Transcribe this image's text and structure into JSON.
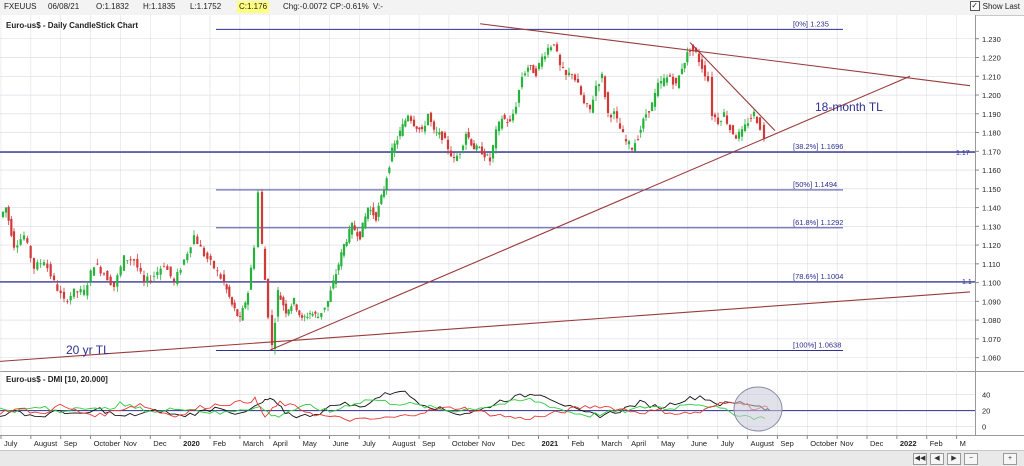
{
  "toolbar": {
    "symbol": "FXEUUS",
    "date": "06/08/21",
    "open": "O:1.1832",
    "high": "H:1.1835",
    "low": "L:1.1752",
    "close": "C:1.176",
    "change": "Chg:-0.0072",
    "change_pct": "CP:-0.61%",
    "dropdown_arrow": "V:-",
    "show_last_label": "Show Last",
    "show_last_checked": "✓"
  },
  "main_panel": {
    "title": "Euro-us$ - Daily CandleStick Chart"
  },
  "indicator_panel": {
    "title": "Euro-us$ - DMI [10, 20.000]"
  },
  "colors": {
    "bull": "#27b33b",
    "bear": "#d23a3a",
    "fib": "#2e3192",
    "trendline": "#9b3b3b",
    "grid": "#d9d9e3",
    "dmi_adx": "#111111",
    "dmi_plus": "#2ecc40",
    "dmi_minus": "#e53935",
    "circle_fill": "#c9c9d9"
  },
  "annotations": {
    "label_18m": "18-month TL",
    "label_20y": "20 yr TL",
    "right_edge_1": "1.17",
    "right_edge_2": "1.1"
  },
  "chart_data": [
    {
      "type": "candlestick",
      "title": "Euro-us$ - Daily CandleStick Chart",
      "ylim": [
        1.055,
        1.24
      ],
      "y_ticks": [
        "1.230",
        "1.220",
        "1.210",
        "1.200",
        "1.190",
        "1.180",
        "1.170",
        "1.160",
        "1.150",
        "1.140",
        "1.130",
        "1.120",
        "1.110",
        "1.100",
        "1.090",
        "1.080",
        "1.070",
        "1.060"
      ],
      "x_labels": [
        "July",
        "August",
        "Sep",
        "October",
        "Nov",
        "Dec",
        "2020",
        "Feb",
        "March",
        "April",
        "May",
        "June",
        "July",
        "August",
        "Sep",
        "October",
        "Nov",
        "Dec",
        "2021",
        "Feb",
        "March",
        "April",
        "May",
        "June",
        "July",
        "August",
        "Sep",
        "October",
        "Nov",
        "Dec",
        "2022",
        "Feb",
        "M"
      ],
      "price_path": [
        [
          0,
          1.135
        ],
        [
          6,
          1.14
        ],
        [
          14,
          1.12
        ],
        [
          24,
          1.125
        ],
        [
          34,
          1.108
        ],
        [
          44,
          1.112
        ],
        [
          54,
          1.1
        ],
        [
          64,
          1.09
        ],
        [
          74,
          1.095
        ],
        [
          84,
          1.095
        ],
        [
          94,
          1.11
        ],
        [
          104,
          1.105
        ],
        [
          114,
          1.098
        ],
        [
          124,
          1.113
        ],
        [
          134,
          1.112
        ],
        [
          144,
          1.1
        ],
        [
          154,
          1.104
        ],
        [
          164,
          1.11
        ],
        [
          174,
          1.1
        ],
        [
          184,
          1.112
        ],
        [
          194,
          1.125
        ],
        [
          204,
          1.115
        ],
        [
          214,
          1.108
        ],
        [
          224,
          1.1
        ],
        [
          232,
          1.088
        ],
        [
          240,
          1.08
        ],
        [
          248,
          1.095
        ],
        [
          254,
          1.12
        ],
        [
          258,
          1.148
        ],
        [
          262,
          1.12
        ],
        [
          268,
          1.083
        ],
        [
          272,
          1.066
        ],
        [
          278,
          1.095
        ],
        [
          286,
          1.085
        ],
        [
          294,
          1.09
        ],
        [
          302,
          1.08
        ],
        [
          310,
          1.084
        ],
        [
          318,
          1.082
        ],
        [
          328,
          1.09
        ],
        [
          336,
          1.105
        ],
        [
          344,
          1.12
        ],
        [
          352,
          1.13
        ],
        [
          360,
          1.125
        ],
        [
          368,
          1.14
        ],
        [
          376,
          1.135
        ],
        [
          384,
          1.15
        ],
        [
          392,
          1.17
        ],
        [
          400,
          1.18
        ],
        [
          408,
          1.19
        ],
        [
          414,
          1.185
        ],
        [
          422,
          1.18
        ],
        [
          428,
          1.19
        ],
        [
          434,
          1.18
        ],
        [
          442,
          1.178
        ],
        [
          448,
          1.172
        ],
        [
          454,
          1.165
        ],
        [
          460,
          1.17
        ],
        [
          466,
          1.18
        ],
        [
          474,
          1.172
        ],
        [
          482,
          1.17
        ],
        [
          490,
          1.165
        ],
        [
          496,
          1.18
        ],
        [
          502,
          1.188
        ],
        [
          510,
          1.185
        ],
        [
          516,
          1.195
        ],
        [
          522,
          1.21
        ],
        [
          528,
          1.215
        ],
        [
          536,
          1.212
        ],
        [
          542,
          1.22
        ],
        [
          548,
          1.225
        ],
        [
          554,
          1.228
        ],
        [
          560,
          1.215
        ],
        [
          566,
          1.21
        ],
        [
          572,
          1.212
        ],
        [
          578,
          1.205
        ],
        [
          584,
          1.195
        ],
        [
          590,
          1.192
        ],
        [
          596,
          1.205
        ],
        [
          602,
          1.21
        ],
        [
          608,
          1.19
        ],
        [
          614,
          1.19
        ],
        [
          620,
          1.182
        ],
        [
          626,
          1.175
        ],
        [
          632,
          1.172
        ],
        [
          638,
          1.178
        ],
        [
          646,
          1.19
        ],
        [
          652,
          1.195
        ],
        [
          658,
          1.205
        ],
        [
          664,
          1.208
        ],
        [
          670,
          1.21
        ],
        [
          676,
          1.205
        ],
        [
          682,
          1.215
        ],
        [
          690,
          1.225
        ],
        [
          696,
          1.222
        ],
        [
          702,
          1.215
        ],
        [
          708,
          1.208
        ],
        [
          712,
          1.19
        ],
        [
          718,
          1.186
        ],
        [
          724,
          1.19
        ],
        [
          730,
          1.182
        ],
        [
          736,
          1.178
        ],
        [
          742,
          1.18
        ],
        [
          748,
          1.186
        ],
        [
          754,
          1.19
        ],
        [
          760,
          1.183
        ],
        [
          764,
          1.176
        ]
      ],
      "fib_levels": [
        {
          "label": "[0%] 1.235",
          "value": 1.235
        },
        {
          "label": "[38.2%] 1.1696",
          "value": 1.1696
        },
        {
          "label": "[50%] 1.1494",
          "value": 1.1494
        },
        {
          "label": "[61.8%] 1.1292",
          "value": 1.1292
        },
        {
          "label": "[78.6%] 1.1004",
          "value": 1.1004
        },
        {
          "label": "[100%] 1.0638",
          "value": 1.0638
        }
      ],
      "trendlines": [
        {
          "label": "18-month TL",
          "points": [
            [
              270,
              1.064
            ],
            [
              910,
              1.21
            ]
          ]
        },
        {
          "label": "descending TL",
          "points": [
            [
              480,
              1.238
            ],
            [
              970,
              1.205
            ]
          ]
        },
        {
          "label": "20 yr TL",
          "points": [
            [
              0,
              1.058
            ],
            [
              970,
              1.095
            ]
          ]
        },
        {
          "label": "short-term TL",
          "points": [
            [
              690,
              1.228
            ],
            [
              775,
              1.181
            ]
          ]
        }
      ]
    },
    {
      "type": "line",
      "title": "Euro-us$ - DMI [10, 20.000]",
      "ylim": [
        -8,
        62
      ],
      "y_ticks": [
        "40",
        "20",
        "0"
      ],
      "series": [
        {
          "values": [
            [
              0,
              15
            ],
            [
              20,
              18
            ],
            [
              40,
              12
            ],
            [
              60,
              20
            ],
            [
              80,
              14
            ],
            [
              100,
              22
            ],
            [
              120,
              12
            ],
            [
              140,
              16
            ],
            [
              160,
              20
            ],
            [
              180,
              13
            ],
            [
              200,
              18
            ],
            [
              220,
              25
            ],
            [
              240,
              14
            ],
            [
              260,
              28
            ],
            [
              270,
              35
            ],
            [
              285,
              18
            ],
            [
              300,
              12
            ],
            [
              320,
              18
            ],
            [
              340,
              30
            ],
            [
              360,
              24
            ],
            [
              380,
              38
            ],
            [
              400,
              46
            ],
            [
              420,
              30
            ],
            [
              440,
              22
            ],
            [
              460,
              16
            ],
            [
              480,
              20
            ],
            [
              500,
              32
            ],
            [
              520,
              38
            ],
            [
              540,
              42
            ],
            [
              560,
              30
            ],
            [
              580,
              18
            ],
            [
              600,
              14
            ],
            [
              620,
              20
            ],
            [
              640,
              30
            ],
            [
              660,
              24
            ],
            [
              680,
              32
            ],
            [
              700,
              38
            ],
            [
              720,
              28
            ],
            [
              740,
              30
            ],
            [
              760,
              26
            ],
            [
              770,
              20
            ]
          ]
        },
        {
          "values": [
            [
              0,
              22
            ],
            [
              20,
              20
            ],
            [
              40,
              24
            ],
            [
              60,
              18
            ],
            [
              80,
              26
            ],
            [
              100,
              20
            ],
            [
              120,
              28
            ],
            [
              140,
              22
            ],
            [
              160,
              18
            ],
            [
              180,
              24
            ],
            [
              200,
              20
            ],
            [
              220,
              16
            ],
            [
              240,
              22
            ],
            [
              260,
              24
            ],
            [
              275,
              12
            ],
            [
              290,
              20
            ],
            [
              310,
              26
            ],
            [
              330,
              18
            ],
            [
              350,
              28
            ],
            [
              370,
              34
            ],
            [
              390,
              30
            ],
            [
              410,
              28
            ],
            [
              430,
              24
            ],
            [
              450,
              20
            ],
            [
              470,
              22
            ],
            [
              490,
              26
            ],
            [
              510,
              30
            ],
            [
              530,
              34
            ],
            [
              550,
              26
            ],
            [
              570,
              18
            ],
            [
              590,
              14
            ],
            [
              610,
              18
            ],
            [
              630,
              20
            ],
            [
              650,
              26
            ],
            [
              670,
              22
            ],
            [
              690,
              30
            ],
            [
              710,
              26
            ],
            [
              730,
              18
            ],
            [
              750,
              12
            ],
            [
              765,
              10
            ]
          ]
        },
        {
          "values": [
            [
              0,
              18
            ],
            [
              20,
              22
            ],
            [
              40,
              16
            ],
            [
              60,
              26
            ],
            [
              80,
              18
            ],
            [
              100,
              14
            ],
            [
              120,
              22
            ],
            [
              140,
              28
            ],
            [
              160,
              18
            ],
            [
              180,
              14
            ],
            [
              200,
              24
            ],
            [
              220,
              28
            ],
            [
              240,
              30
            ],
            [
              255,
              34
            ],
            [
              265,
              12
            ],
            [
              280,
              30
            ],
            [
              300,
              22
            ],
            [
              320,
              14
            ],
            [
              340,
              10
            ],
            [
              360,
              8
            ],
            [
              380,
              10
            ],
            [
              400,
              12
            ],
            [
              420,
              18
            ],
            [
              440,
              22
            ],
            [
              460,
              24
            ],
            [
              480,
              18
            ],
            [
              500,
              14
            ],
            [
              520,
              10
            ],
            [
              540,
              12
            ],
            [
              560,
              18
            ],
            [
              580,
              24
            ],
            [
              600,
              26
            ],
            [
              620,
              22
            ],
            [
              640,
              18
            ],
            [
              660,
              20
            ],
            [
              680,
              16
            ],
            [
              700,
              18
            ],
            [
              720,
              28
            ],
            [
              740,
              32
            ],
            [
              755,
              22
            ],
            [
              768,
              24
            ]
          ]
        }
      ]
    }
  ]
}
